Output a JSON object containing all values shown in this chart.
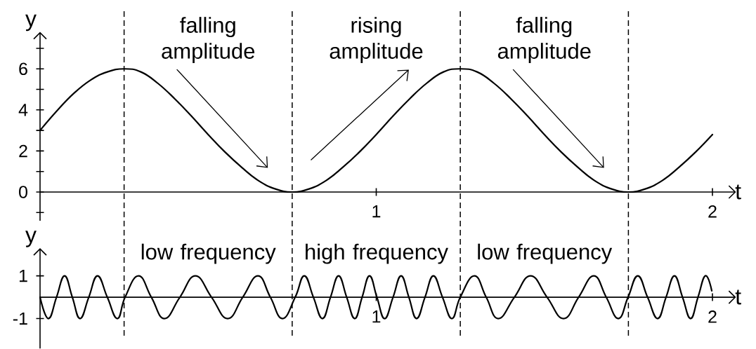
{
  "chart_data": [
    {
      "type": "line",
      "xlabel": "t",
      "ylabel": "y",
      "xlim": [
        0,
        2.07
      ],
      "ylim": [
        -1.4,
        7.8
      ],
      "xticks": [
        1,
        2
      ],
      "yticks": [
        {
          "value": -1,
          "label": null
        },
        0,
        {
          "value": 1,
          "label": null
        },
        2,
        {
          "value": 3,
          "label": null
        },
        4,
        {
          "value": 5,
          "label": null
        },
        6,
        {
          "value": 7,
          "label": null
        }
      ],
      "marker": "none",
      "line_style": "solid",
      "ref_lines": [
        {
          "axis": "x",
          "value": 0.25,
          "line_style": "dashed"
        },
        {
          "axis": "x",
          "value": 0.75,
          "line_style": "dashed"
        },
        {
          "axis": "x",
          "value": 1.25,
          "line_style": "dashed"
        },
        {
          "axis": "x",
          "value": 1.75,
          "line_style": "dashed"
        }
      ],
      "annotations": [
        "falling amplitude",
        "rising amplitude",
        "falling amplitude"
      ],
      "series": [
        {
          "color": "#000000",
          "x": [
            0,
            0.05,
            0.1,
            0.15,
            0.2,
            0.25,
            0.3,
            0.35,
            0.4,
            0.45,
            0.5,
            0.55,
            0.6,
            0.65,
            0.7,
            0.75,
            0.8,
            0.85,
            0.9,
            0.95,
            1,
            1.05,
            1.1,
            1.15,
            1.2,
            1.25,
            1.3,
            1.35,
            1.4,
            1.45,
            1.5,
            1.55,
            1.6,
            1.65,
            1.7,
            1.75,
            1.8,
            1.85,
            1.9,
            1.95,
            2
          ],
          "values": [
            3.0,
            3.95,
            4.8,
            5.45,
            5.85,
            6.0,
            5.85,
            5.3,
            4.55,
            3.7,
            2.8,
            1.95,
            1.2,
            0.55,
            0.15,
            0.0,
            0.15,
            0.55,
            1.2,
            1.95,
            2.8,
            3.7,
            4.55,
            5.3,
            5.85,
            6.0,
            5.85,
            5.3,
            4.55,
            3.7,
            2.8,
            1.95,
            1.2,
            0.55,
            0.15,
            0.0,
            0.15,
            0.55,
            1.2,
            1.95,
            2.8
          ]
        }
      ]
    },
    {
      "type": "line",
      "xlabel": "t",
      "ylabel": "y",
      "xlim": [
        0,
        2.07
      ],
      "ylim": [
        -2.4,
        2.3
      ],
      "xticks": [
        1,
        2
      ],
      "yticks": [
        -1,
        1
      ],
      "marker": "none",
      "line_style": "solid",
      "ref_lines": [
        {
          "axis": "x",
          "value": 0.25,
          "line_style": "dashed"
        },
        {
          "axis": "x",
          "value": 0.75,
          "line_style": "dashed"
        },
        {
          "axis": "x",
          "value": 1.25,
          "line_style": "dashed"
        },
        {
          "axis": "x",
          "value": 1.75,
          "line_style": "dashed"
        }
      ],
      "annotations": [
        "low frequency",
        "high frequency",
        "low frequency"
      ],
      "series": [
        {
          "color": "#000000",
          "x": [
            0,
            0.025,
            0.049,
            0.073,
            0.096,
            0.119,
            0.145,
            0.171,
            0.2,
            0.23,
            0.253,
            0.293,
            0.331,
            0.37,
            0.416,
            0.462,
            0.51,
            0.558,
            0.603,
            0.648,
            0.685,
            0.721,
            0.759,
            0.786,
            0.813,
            0.84,
            0.864,
            0.888,
            0.912,
            0.936,
            0.958,
            0.98,
            1.002,
            1.025,
            1.05,
            1.074,
            1.097,
            1.12,
            1.145,
            1.17,
            1.197,
            1.225,
            1.25,
            1.292,
            1.327,
            1.363,
            1.411,
            1.459,
            1.508,
            1.557,
            1.602,
            1.647,
            1.684,
            1.72,
            1.749,
            1.778,
            1.807,
            1.837,
            1.862,
            1.887,
            1.911,
            1.935,
            1.957,
            1.979,
            1.998
          ],
          "values": [
            0,
            -1,
            0,
            1,
            0,
            -1,
            0,
            1,
            0,
            -1,
            0,
            1,
            0,
            -1,
            0,
            1,
            0,
            -1,
            0,
            1,
            0,
            -1,
            0,
            1,
            0,
            -1,
            0,
            1,
            0,
            -1,
            0,
            1,
            0,
            -1,
            0,
            1,
            0,
            -1,
            0,
            1,
            0,
            -1,
            0,
            1,
            0,
            -1,
            0,
            1,
            0,
            -1,
            0,
            1,
            0,
            -1,
            0,
            1,
            0,
            -1,
            0,
            1,
            0,
            -1,
            0,
            1,
            0.3
          ]
        }
      ]
    }
  ]
}
